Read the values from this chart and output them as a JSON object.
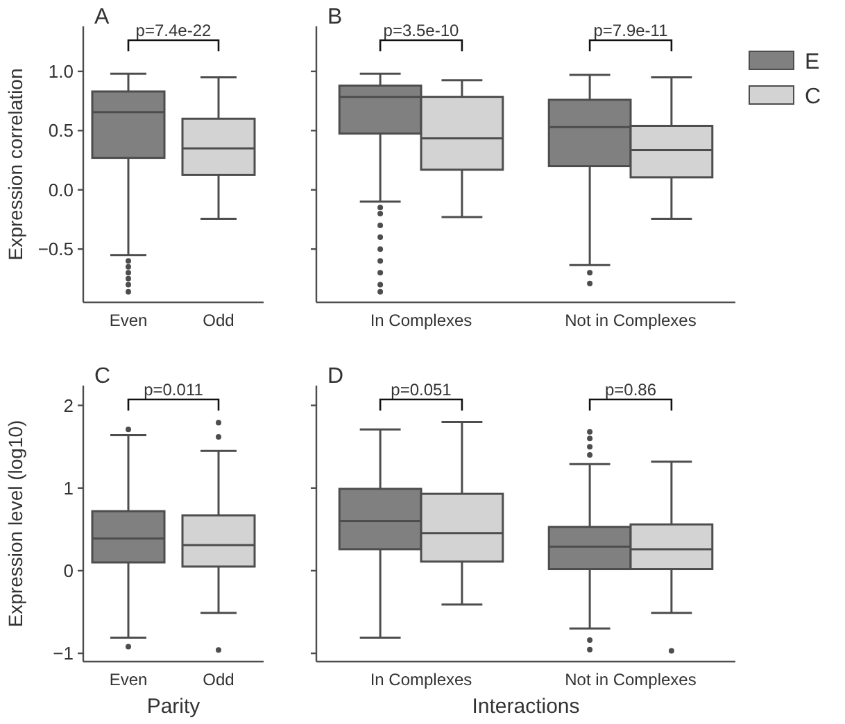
{
  "chart_data": [
    {
      "type": "box",
      "title": "A",
      "ylabel": "Expression correlation",
      "categories": [
        "Even",
        "Odd"
      ],
      "colors": [
        "#808080",
        "#d3d3d3"
      ],
      "boxes": [
        {
          "low": -0.55,
          "q1": 0.27,
          "median": 0.655,
          "q3": 0.83,
          "high": 0.98,
          "outliers": [
            -0.6,
            -0.65,
            -0.7,
            -0.75,
            -0.8,
            -0.86
          ]
        },
        {
          "low": -0.245,
          "q1": 0.125,
          "median": 0.35,
          "q3": 0.6,
          "high": 0.95
        }
      ],
      "ylim": [
        -0.95,
        1.38
      ],
      "yticks": [
        {
          "value": -0.5,
          "label": "−0.5"
        },
        {
          "value": 0,
          "label": "0.0"
        },
        0.5,
        {
          "value": 1,
          "label": "1.0"
        }
      ],
      "annotations": [
        "p=7.4e-22"
      ]
    },
    {
      "type": "box",
      "title": "B",
      "categories": [
        "In Complexes",
        "Not in Complexes"
      ],
      "legend": "right",
      "tick_labels": "x",
      "series": [
        {
          "name": "E",
          "color": "#808080",
          "boxes": [
            {
              "low": -0.1,
              "q1": 0.475,
              "median": 0.785,
              "q3": 0.88,
              "high": 0.98,
              "outliers": [
                -0.15,
                -0.2,
                -0.3,
                -0.4,
                -0.5,
                -0.6,
                -0.7,
                -0.8,
                -0.86
              ]
            },
            {
              "low": -0.635,
              "q1": 0.2,
              "median": 0.53,
              "q3": 0.76,
              "high": 0.97,
              "outliers": [
                -0.7,
                -0.79
              ]
            }
          ]
        },
        {
          "name": "C",
          "color": "#d3d3d3",
          "boxes": [
            {
              "low": -0.23,
              "q1": 0.17,
              "median": 0.435,
              "q3": 0.785,
              "high": 0.925
            },
            {
              "low": -0.245,
              "q1": 0.105,
              "median": 0.335,
              "q3": 0.54,
              "high": 0.95
            }
          ]
        }
      ],
      "ylim": [
        -0.95,
        1.38
      ],
      "yticks": [
        -0.5,
        0,
        0.5,
        1
      ],
      "annotations": [
        "p=3.5e-10",
        "p=7.9e-11"
      ]
    },
    {
      "type": "box",
      "title": "C",
      "xlabel": "Parity",
      "ylabel": "Expression level (log10)",
      "categories": [
        "Even",
        "Odd"
      ],
      "colors": [
        "#808080",
        "#d3d3d3"
      ],
      "boxes": [
        {
          "low": -0.81,
          "q1": 0.1,
          "median": 0.39,
          "q3": 0.72,
          "high": 1.64,
          "outliers": [
            1.71,
            -0.92
          ]
        },
        {
          "low": -0.51,
          "q1": 0.05,
          "median": 0.31,
          "q3": 0.67,
          "high": 1.45,
          "outliers": [
            1.62,
            1.79,
            -0.96
          ]
        }
      ],
      "ylim": [
        -1.1,
        2.24
      ],
      "yticks": [
        {
          "value": -1,
          "label": "−1"
        },
        0,
        1,
        2
      ],
      "annotations": [
        "p=0.011"
      ]
    },
    {
      "type": "box",
      "title": "D",
      "xlabel": "Interactions",
      "categories": [
        "In Complexes",
        "Not in Complexes"
      ],
      "tick_labels": "x",
      "series": [
        {
          "color": "#808080",
          "boxes": [
            {
              "low": -0.81,
              "q1": 0.26,
              "median": 0.6,
              "q3": 0.99,
              "high": 1.71
            },
            {
              "low": -0.7,
              "q1": 0.02,
              "median": 0.29,
              "q3": 0.53,
              "high": 1.29,
              "outliers": [
                1.4,
                1.5,
                1.6,
                1.68,
                -0.84,
                -0.955
              ]
            }
          ]
        },
        {
          "color": "#d3d3d3",
          "boxes": [
            {
              "low": -0.41,
              "q1": 0.11,
              "median": 0.455,
              "q3": 0.93,
              "high": 1.8
            },
            {
              "low": -0.51,
              "q1": 0.02,
              "median": 0.26,
              "q3": 0.56,
              "high": 1.32,
              "outliers": [
                -0.97
              ]
            }
          ]
        }
      ],
      "ylim": [
        -1.1,
        2.24
      ],
      "yticks": [
        -1,
        0,
        1,
        2
      ],
      "annotations": [
        "p=0.051",
        "p=0.86"
      ]
    }
  ]
}
